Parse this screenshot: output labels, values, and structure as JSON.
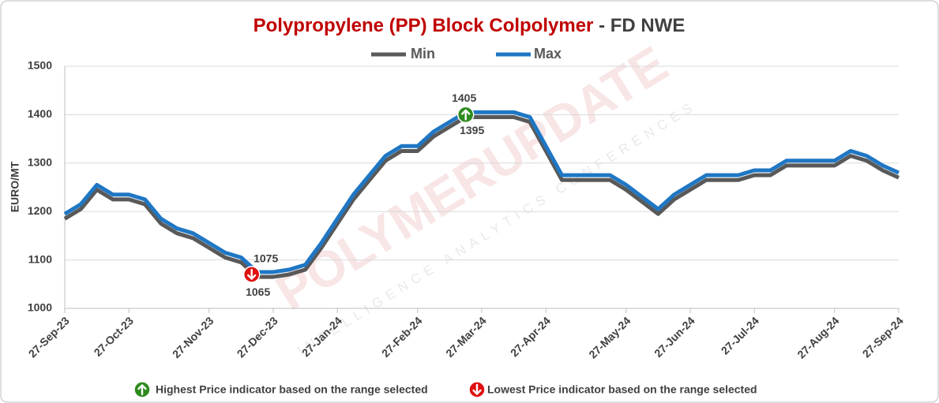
{
  "chart_data": {
    "type": "line",
    "title": "Polypropylene (PP) Block Colpolymer",
    "title_suffix": "- FD NWE",
    "y_label": "EURO/MT",
    "watermark": "POLYMERUPDATE",
    "watermark_sub": "INTELLIGENCE ANALYTICS CONFERENCES",
    "categories": [
      "27-Sep-23",
      null,
      null,
      null,
      "27-Oct-23",
      null,
      null,
      null,
      null,
      "27-Nov-23",
      null,
      null,
      null,
      "27-Dec-23",
      null,
      null,
      null,
      "27-Jan-24",
      null,
      null,
      null,
      null,
      "27-Feb-24",
      null,
      null,
      null,
      "27-Mar-24",
      null,
      null,
      null,
      "27-Apr-24",
      null,
      null,
      null,
      null,
      "27-May-24",
      null,
      null,
      null,
      "27-Jun-24",
      null,
      null,
      null,
      "27-Jul-24",
      null,
      null,
      null,
      null,
      "27-Aug-24",
      null,
      null,
      null,
      "27-Sep-24"
    ],
    "series": [
      {
        "name": "Min",
        "color": "#595959",
        "values": [
          1185,
          1205,
          1245,
          1225,
          1225,
          1215,
          1175,
          1155,
          1145,
          1125,
          1105,
          1095,
          1065,
          1065,
          1070,
          1080,
          1125,
          1175,
          1225,
          1265,
          1305,
          1325,
          1325,
          1355,
          1375,
          1395,
          1395,
          1395,
          1395,
          1385,
          1325,
          1265,
          1265,
          1265,
          1265,
          1245,
          1220,
          1195,
          1225,
          1245,
          1265,
          1265,
          1265,
          1275,
          1275,
          1295,
          1295,
          1295,
          1295,
          1315,
          1305,
          1285,
          1270
        ]
      },
      {
        "name": "Max",
        "color": "#1f77c4",
        "values": [
          1195,
          1215,
          1255,
          1235,
          1235,
          1225,
          1185,
          1165,
          1155,
          1135,
          1115,
          1105,
          1075,
          1075,
          1080,
          1090,
          1135,
          1185,
          1235,
          1275,
          1315,
          1335,
          1335,
          1365,
          1385,
          1405,
          1405,
          1405,
          1405,
          1395,
          1335,
          1275,
          1275,
          1275,
          1275,
          1255,
          1230,
          1205,
          1235,
          1255,
          1275,
          1275,
          1275,
          1285,
          1285,
          1305,
          1305,
          1305,
          1305,
          1325,
          1315,
          1295,
          1280
        ]
      }
    ],
    "ylim": [
      1000,
      1500
    ],
    "yticks": [
      1000,
      1100,
      1200,
      1300,
      1400,
      1500
    ],
    "grid": true,
    "legend_position": "top",
    "high_color": "#2e8b1e",
    "low_color": "#e01010",
    "high_note": "Highest Price indicator based on the range selected",
    "low_note": "Lowest Price indicator based on the range selected"
  }
}
